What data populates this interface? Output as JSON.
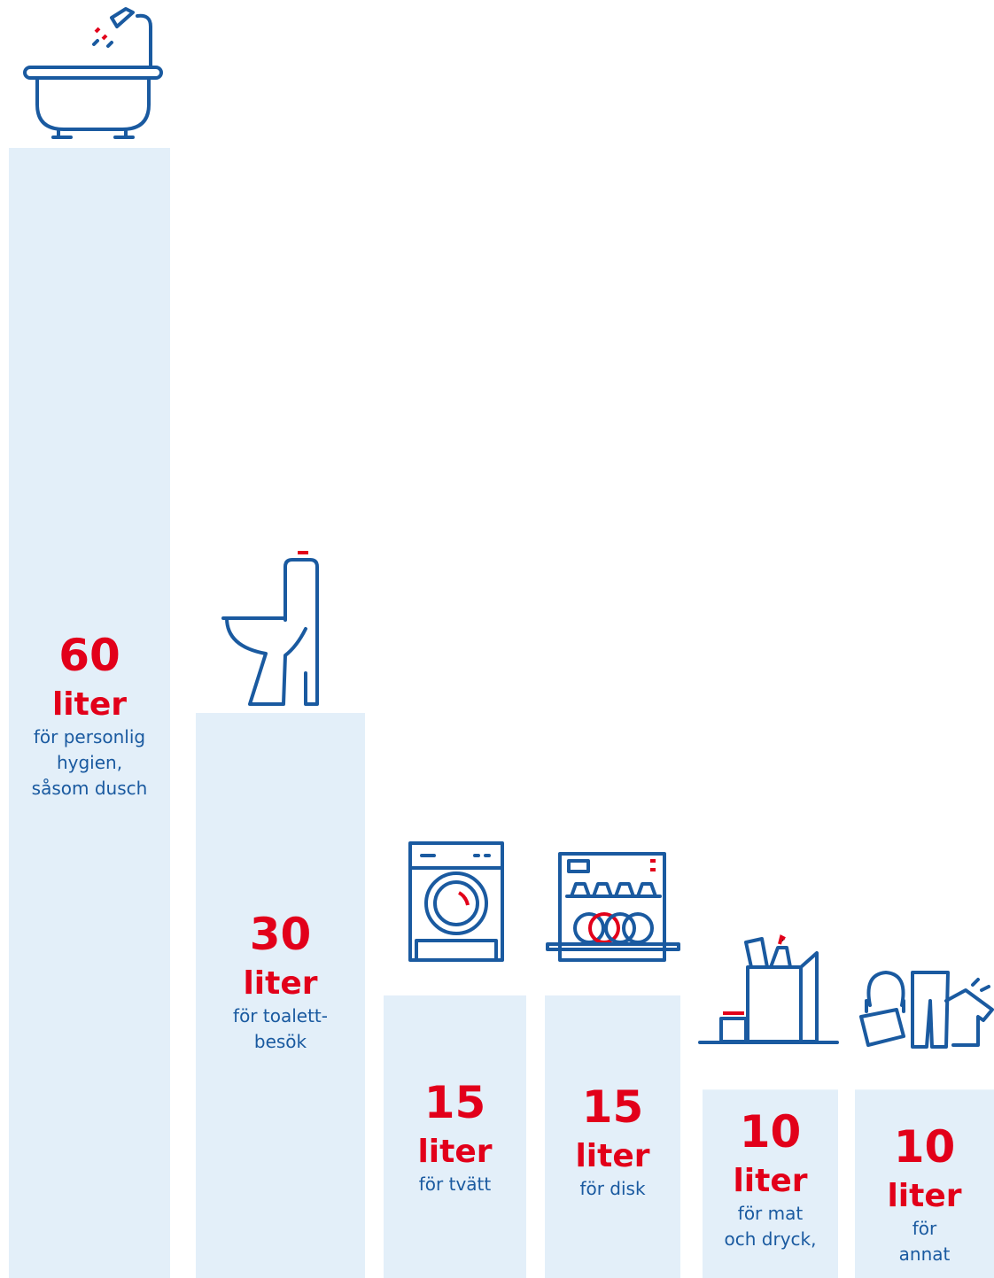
{
  "chart_data": {
    "type": "bar",
    "unit": "liter",
    "categories": [
      "för personlig\nhygien,\nsåsom dusch",
      "för toalett-\nbesök",
      "för tvätt",
      "för disk",
      "för mat\noch dryck,",
      "för annat"
    ],
    "values": [
      60,
      30,
      15,
      15,
      10,
      10
    ],
    "color": "#e3eff9",
    "value_color": "#e2001a",
    "label_color": "#1a5aa0"
  }
}
